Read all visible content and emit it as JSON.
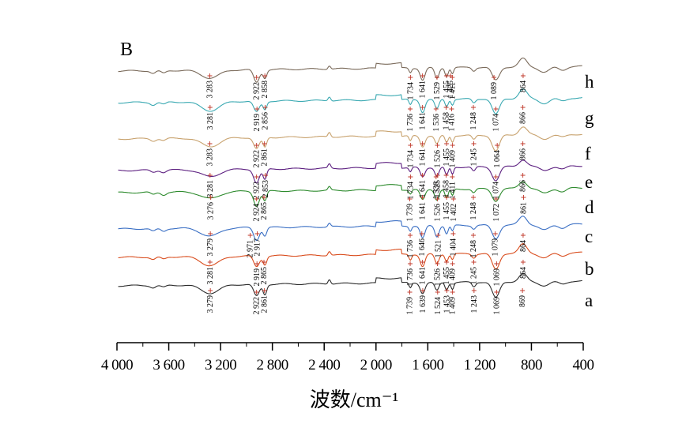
{
  "chart_data": {
    "type": "line",
    "panel_label": "B",
    "xlabel": "波数/cm⁻¹",
    "xlim": [
      4000,
      400
    ],
    "x_ticks": [
      4000,
      3600,
      3200,
      2800,
      2400,
      2000,
      1600,
      1200,
      800,
      400
    ],
    "x_tick_labels": [
      "4 000",
      "3 600",
      "3 200",
      "2 800",
      "2 400",
      "2 000",
      "1 600",
      "1 200",
      "800",
      "400"
    ],
    "ylabel": "",
    "series_colors": {
      "h": "#7a6a5a",
      "g": "#3aa9b2",
      "f": "#c8a26e",
      "e": "#5c1f80",
      "d": "#2e8b2e",
      "c": "#3a6fc4",
      "b": "#d94d1e",
      "a": "#2b2b2b"
    },
    "series": [
      {
        "name": "h",
        "peaks": [
          {
            "x": 3283,
            "label": "3 283"
          },
          {
            "x": 2922,
            "label": "2 922"
          },
          {
            "x": 2858,
            "label": "2 858"
          },
          {
            "x": 1734,
            "label": "1 734"
          },
          {
            "x": 1641,
            "label": "1 641"
          },
          {
            "x": 1529,
            "label": "1 529"
          },
          {
            "x": 1455,
            "label": "1 455"
          },
          {
            "x": 1411,
            "label": "1 411"
          },
          {
            "x": 1425,
            "label": "1 425"
          },
          {
            "x": 1089,
            "label": "1 089"
          },
          {
            "x": 864,
            "label": "864"
          }
        ]
      },
      {
        "name": "g",
        "peaks": [
          {
            "x": 3281,
            "label": "3 281"
          },
          {
            "x": 2919,
            "label": "2 919"
          },
          {
            "x": 2856,
            "label": "2 856"
          },
          {
            "x": 1736,
            "label": "1 736"
          },
          {
            "x": 1641,
            "label": "1 641"
          },
          {
            "x": 1536,
            "label": "1 536"
          },
          {
            "x": 1458,
            "label": "1 458"
          },
          {
            "x": 1416,
            "label": "1 416"
          },
          {
            "x": 1248,
            "label": "1 248"
          },
          {
            "x": 1074,
            "label": "1 074"
          },
          {
            "x": 866,
            "label": "866"
          }
        ]
      },
      {
        "name": "f",
        "peaks": [
          {
            "x": 3283,
            "label": "3 283"
          },
          {
            "x": 2922,
            "label": "2 922"
          },
          {
            "x": 2861,
            "label": "2 861"
          },
          {
            "x": 1734,
            "label": "1 734"
          },
          {
            "x": 1641,
            "label": "1 641"
          },
          {
            "x": 1526,
            "label": "1 526"
          },
          {
            "x": 1455,
            "label": "1 455"
          },
          {
            "x": 1409,
            "label": "1 409"
          },
          {
            "x": 1245,
            "label": "1 245"
          },
          {
            "x": 1064,
            "label": "1 064"
          },
          {
            "x": 866,
            "label": "866"
          }
        ]
      },
      {
        "name": "e",
        "peaks": [
          {
            "x": 3281,
            "label": "3 281"
          },
          {
            "x": 2922,
            "label": "2 922"
          },
          {
            "x": 2853,
            "label": "2 853"
          },
          {
            "x": 1734,
            "label": "1 734"
          },
          {
            "x": 1641,
            "label": "1 641"
          },
          {
            "x": 1536,
            "label": "1 536"
          },
          {
            "x": 1458,
            "label": "1 458"
          },
          {
            "x": 1411,
            "label": "1 411"
          },
          {
            "x": 1525,
            "label": "1 525"
          },
          {
            "x": 1074,
            "label": "1 074"
          },
          {
            "x": 866,
            "label": "866"
          }
        ]
      },
      {
        "name": "d",
        "peaks": [
          {
            "x": 3276,
            "label": "3 276"
          },
          {
            "x": 2924,
            "label": "2 924"
          },
          {
            "x": 2865,
            "label": "2 865"
          },
          {
            "x": 1739,
            "label": "1 739"
          },
          {
            "x": 1641,
            "label": "1 641"
          },
          {
            "x": 1526,
            "label": "1 526"
          },
          {
            "x": 1455,
            "label": "1 455"
          },
          {
            "x": 1402,
            "label": "1 402"
          },
          {
            "x": 1248,
            "label": "1 248"
          },
          {
            "x": 1072,
            "label": "1 072"
          },
          {
            "x": 861,
            "label": "861"
          }
        ]
      },
      {
        "name": "c",
        "peaks": [
          {
            "x": 3279,
            "label": "3 279"
          },
          {
            "x": 2971,
            "label": "2 971"
          },
          {
            "x": 2917,
            "label": "2 917"
          },
          {
            "x": 1736,
            "label": "1 736"
          },
          {
            "x": 1646,
            "label": "1 646"
          },
          {
            "x": 1521,
            "label": "1 521"
          },
          {
            "x": 1404,
            "label": "1 404"
          },
          {
            "x": 1248,
            "label": "1 248"
          },
          {
            "x": 1079,
            "label": "1 079"
          },
          {
            "x": 864,
            "label": "864"
          }
        ]
      },
      {
        "name": "b",
        "peaks": [
          {
            "x": 3281,
            "label": "3 281"
          },
          {
            "x": 2919,
            "label": "2 919"
          },
          {
            "x": 2865,
            "label": "2 865"
          },
          {
            "x": 1736,
            "label": "1 736"
          },
          {
            "x": 1641,
            "label": "1 641"
          },
          {
            "x": 1526,
            "label": "1 526"
          },
          {
            "x": 1455,
            "label": "1 455"
          },
          {
            "x": 1409,
            "label": "1 409"
          },
          {
            "x": 1245,
            "label": "1 245"
          },
          {
            "x": 1069,
            "label": "1 069"
          },
          {
            "x": 864,
            "label": "864"
          }
        ]
      },
      {
        "name": "a",
        "peaks": [
          {
            "x": 3279,
            "label": "3 279"
          },
          {
            "x": 2922,
            "label": "2 922"
          },
          {
            "x": 2861,
            "label": "2 861"
          },
          {
            "x": 1739,
            "label": "1 739"
          },
          {
            "x": 1639,
            "label": "1 639"
          },
          {
            "x": 1524,
            "label": "1 524"
          },
          {
            "x": 1453,
            "label": "1 453"
          },
          {
            "x": 1409,
            "label": "1 409"
          },
          {
            "x": 1243,
            "label": "1 243"
          },
          {
            "x": 1069,
            "label": "1 069"
          },
          {
            "x": 869,
            "label": "869"
          }
        ]
      }
    ]
  }
}
